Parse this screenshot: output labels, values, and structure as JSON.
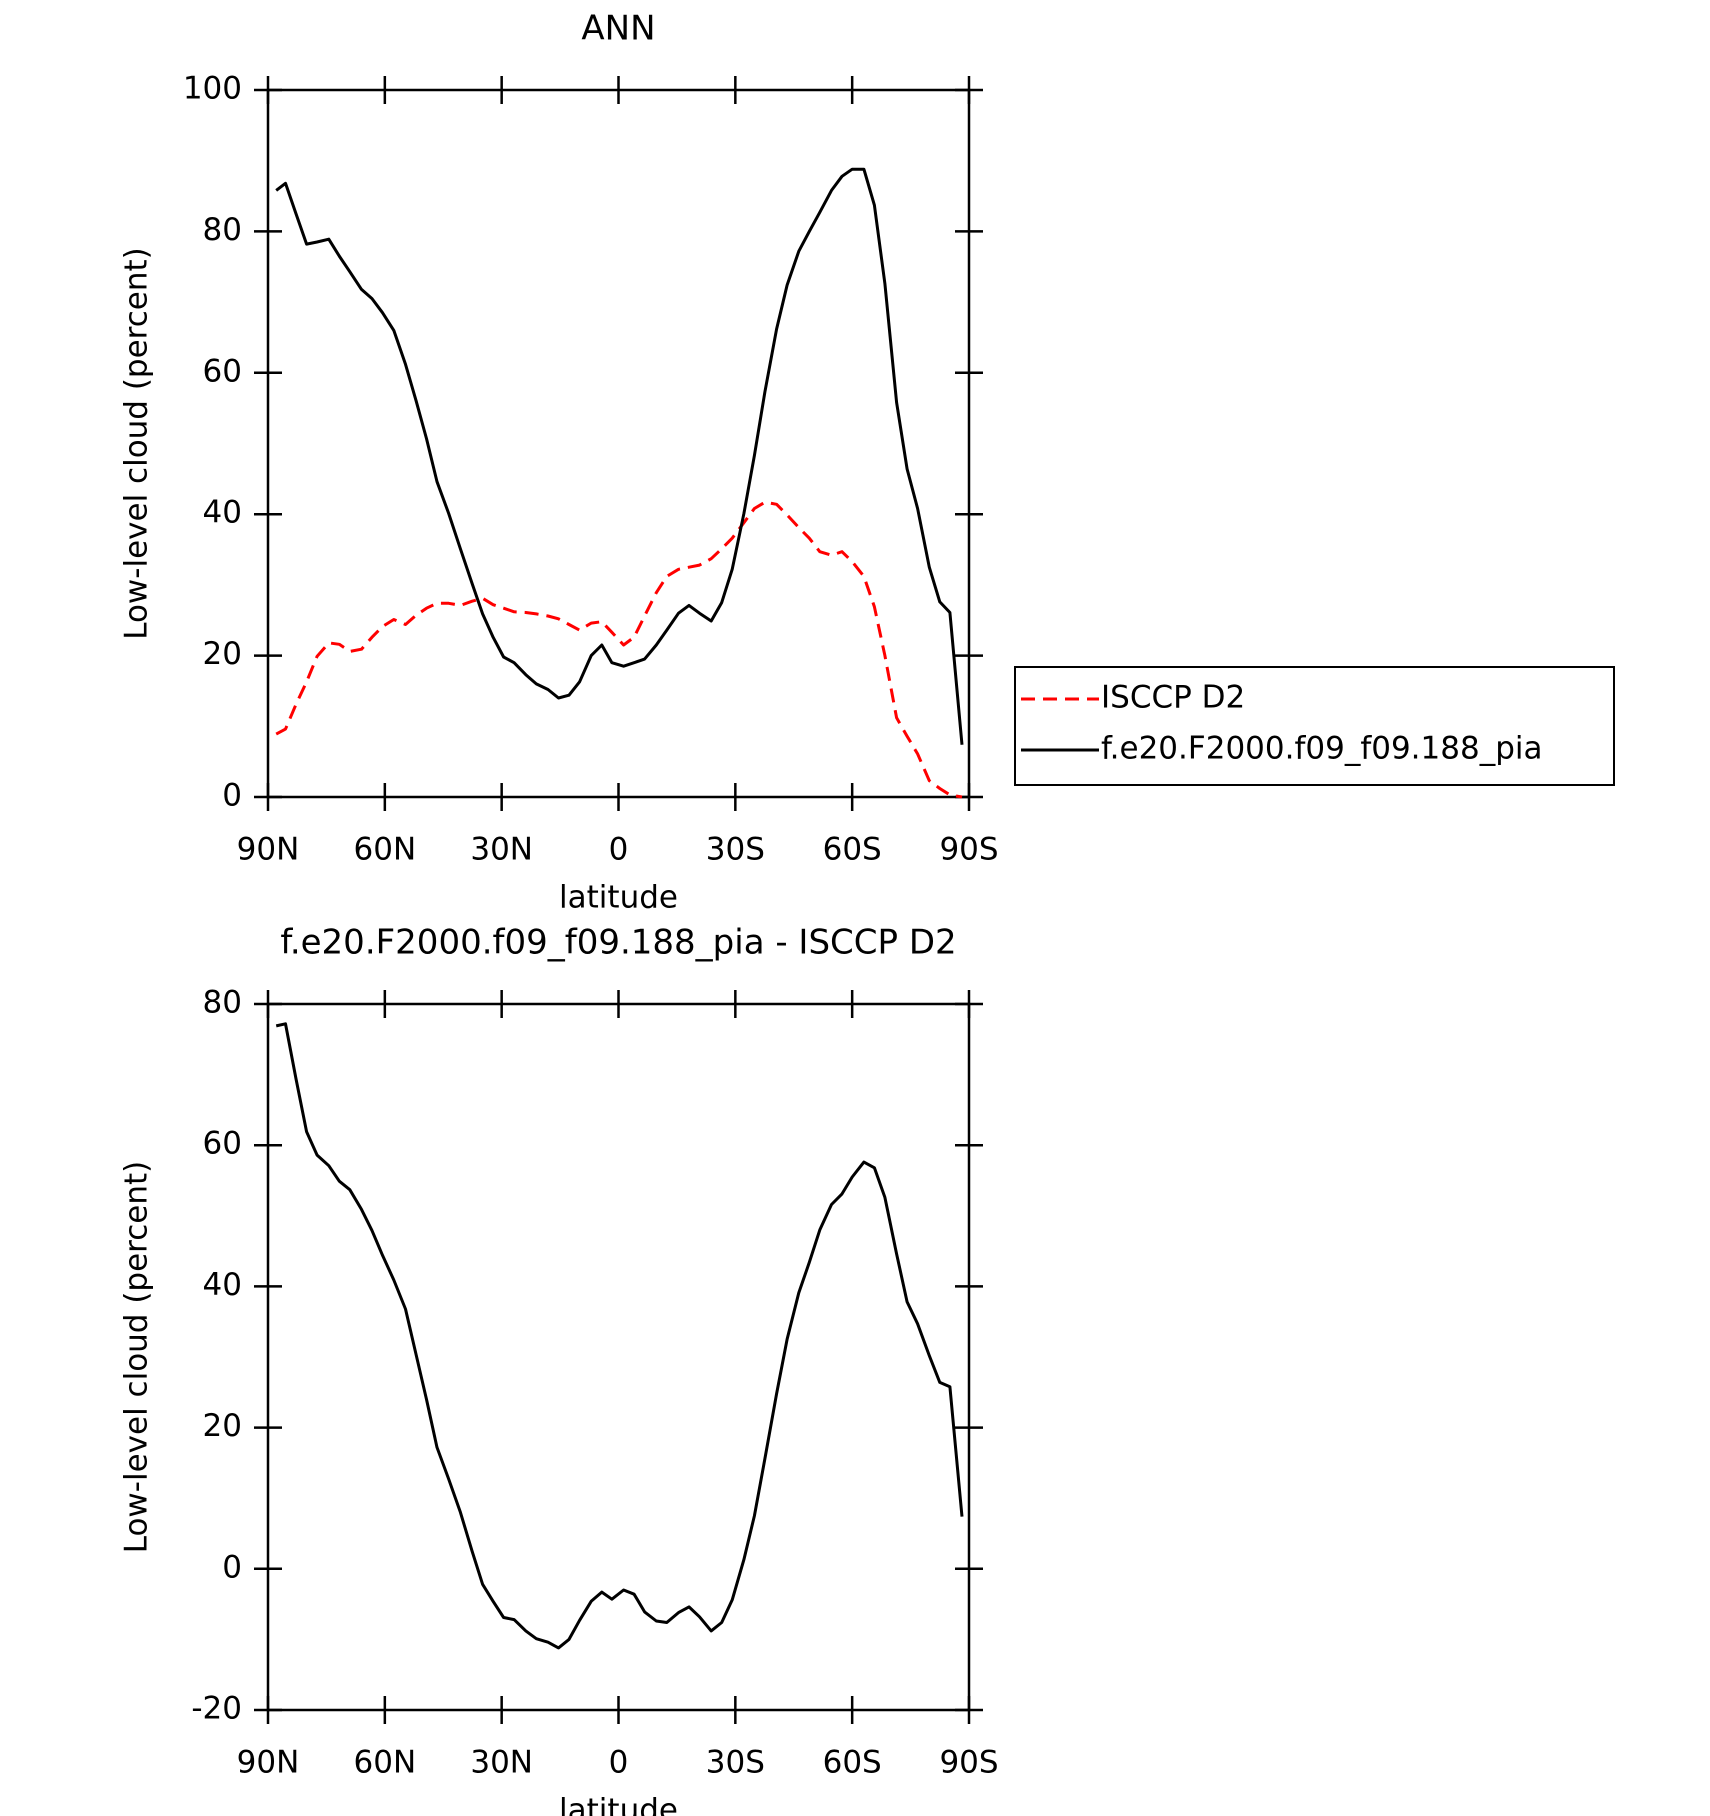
{
  "chart_data": [
    {
      "type": "line",
      "title": "ANN",
      "x_label": "latitude",
      "y_label": "Low-level cloud (percent)",
      "x": [
        87.9,
        85.5,
        82.8,
        80.1,
        77.4,
        74.4,
        71.7,
        69.0,
        66.0,
        63.3,
        60.6,
        57.7,
        54.7,
        52.0,
        49.3,
        46.6,
        43.6,
        40.6,
        37.6,
        34.9,
        32.2,
        29.5,
        26.8,
        23.8,
        21.1,
        18.1,
        15.4,
        12.7,
        10.0,
        7.0,
        4.3,
        1.7,
        -1.3,
        -4.0,
        -6.7,
        -9.7,
        -12.4,
        -15.4,
        -18.1,
        -20.8,
        -23.8,
        -26.5,
        -29.2,
        -32.2,
        -34.9,
        -37.6,
        -40.6,
        -43.3,
        -46.3,
        -49.0,
        -51.7,
        -54.7,
        -57.4,
        -60.0,
        -63.0,
        -65.7,
        -68.4,
        -71.4,
        -74.1,
        -76.8,
        -79.8,
        -82.5,
        -85.1,
        -88.2
      ],
      "series": [
        {
          "name": "ISCCP D2",
          "color": "#ff0000",
          "dash": true,
          "values": [
            8.9,
            9.6,
            13.1,
            16.3,
            19.9,
            21.8,
            21.6,
            20.6,
            20.9,
            22.6,
            24.1,
            25.1,
            24.4,
            25.7,
            26.7,
            27.4,
            27.4,
            27.1,
            27.7,
            28.1,
            27.2,
            26.7,
            26.2,
            26.1,
            25.9,
            25.6,
            25.2,
            24.4,
            23.6,
            24.6,
            24.8,
            23.3,
            21.5,
            22.6,
            25.6,
            28.9,
            31.2,
            32.2,
            32.5,
            32.8,
            33.7,
            35.1,
            36.6,
            38.8,
            40.8,
            41.7,
            41.4,
            39.9,
            38.1,
            36.6,
            34.7,
            34.2,
            34.7,
            33.3,
            31.2,
            26.9,
            20.0,
            11.2,
            8.6,
            6.1,
            2.3,
            1.2,
            0.3,
            0
          ]
        },
        {
          "name": "f.e20.F2000.f09_f09.188_pia",
          "color": "#000000",
          "dash": false,
          "values": [
            85.8,
            86.8,
            82.5,
            78.2,
            78.5,
            78.9,
            76.5,
            74.3,
            71.8,
            70.5,
            68.5,
            66.0,
            61.2,
            56.1,
            50.7,
            44.6,
            40.1,
            35.1,
            30.2,
            25.9,
            22.6,
            19.8,
            19.0,
            17.3,
            16.0,
            15.2,
            14.0,
            14.4,
            16.3,
            20.0,
            21.5,
            19.0,
            18.5,
            19.0,
            19.5,
            21.5,
            23.6,
            26.0,
            27.1,
            26.0,
            24.9,
            27.5,
            32.2,
            40.1,
            48.3,
            57.3,
            66.2,
            72.4,
            77.2,
            80.0,
            82.7,
            85.8,
            87.8,
            88.8,
            88.8,
            83.7,
            72.6,
            55.8,
            46.4,
            40.8,
            32.5,
            27.6,
            26.1,
            7.4
          ]
        }
      ],
      "xlim": [
        90,
        -90
      ],
      "xticks": [
        {
          "value": 90,
          "label": "90N"
        },
        {
          "value": 60,
          "label": "60N"
        },
        {
          "value": 30,
          "label": "30N"
        },
        0,
        {
          "value": -30,
          "label": "30S"
        },
        {
          "value": -60,
          "label": "60S"
        },
        {
          "value": -90,
          "label": "90S"
        }
      ],
      "ylim": [
        0,
        100
      ],
      "yticks": [
        0,
        20,
        40,
        60,
        80,
        100
      ],
      "legend": "right"
    },
    {
      "type": "line",
      "title": "f.e20.F2000.f09_f09.188_pia - ISCCP D2",
      "x_label": "latitude",
      "y_label": "Low-level cloud (percent)",
      "x": [
        87.9,
        85.5,
        82.8,
        80.1,
        77.4,
        74.4,
        71.7,
        69.0,
        66.0,
        63.3,
        60.6,
        57.7,
        54.7,
        52.0,
        49.3,
        46.6,
        43.6,
        40.6,
        37.6,
        34.9,
        32.2,
        29.5,
        26.8,
        23.8,
        21.1,
        18.1,
        15.4,
        12.7,
        10.0,
        7.0,
        4.3,
        1.7,
        -1.3,
        -4.0,
        -6.7,
        -9.7,
        -12.4,
        -15.4,
        -18.1,
        -20.8,
        -23.8,
        -26.5,
        -29.2,
        -32.2,
        -34.9,
        -37.6,
        -40.6,
        -43.3,
        -46.3,
        -49.0,
        -51.7,
        -54.7,
        -57.4,
        -60.0,
        -63.0,
        -65.7,
        -68.4,
        -71.4,
        -74.1,
        -76.8,
        -79.8,
        -82.5,
        -85.1,
        -88.2
      ],
      "color": "#000000",
      "values": [
        76.9,
        77.2,
        69.4,
        61.9,
        58.6,
        57.1,
        54.9,
        53.7,
        50.9,
        47.9,
        44.4,
        40.9,
        36.8,
        30.4,
        24.0,
        17.2,
        12.7,
        8.0,
        2.5,
        -2.2,
        -4.6,
        -6.9,
        -7.2,
        -8.8,
        -9.9,
        -10.4,
        -11.2,
        -10.0,
        -7.3,
        -4.6,
        -3.3,
        -4.3,
        -3.0,
        -3.6,
        -6.1,
        -7.4,
        -7.6,
        -6.2,
        -5.4,
        -6.8,
        -8.8,
        -7.6,
        -4.4,
        1.3,
        7.5,
        15.6,
        24.8,
        32.5,
        39.1,
        43.4,
        48.0,
        51.6,
        53.1,
        55.5,
        57.6,
        56.8,
        52.6,
        44.6,
        37.8,
        34.7,
        30.2,
        26.4,
        25.8,
        7.4
      ],
      "xlim": [
        90,
        -90
      ],
      "xticks": [
        {
          "value": 90,
          "label": "90N"
        },
        {
          "value": 60,
          "label": "60N"
        },
        {
          "value": 30,
          "label": "30N"
        },
        0,
        {
          "value": -30,
          "label": "30S"
        },
        {
          "value": -60,
          "label": "60S"
        },
        {
          "value": -90,
          "label": "90S"
        }
      ],
      "ylim": [
        -20,
        80
      ],
      "yticks": [
        -20,
        0,
        20,
        40,
        60,
        80
      ]
    }
  ]
}
